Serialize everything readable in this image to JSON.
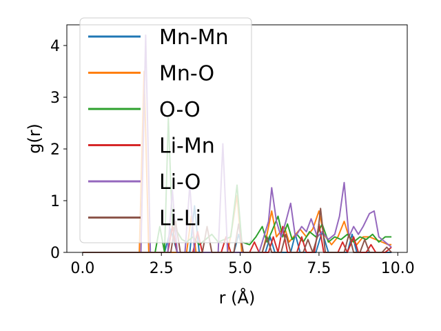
{
  "chart_data": {
    "type": "line",
    "title": "",
    "xlabel": "r (Å)",
    "ylabel": "g(r)",
    "xlim": [
      -0.5,
      10.3
    ],
    "ylim": [
      0,
      4.4
    ],
    "xticks": [
      0.0,
      2.5,
      5.0,
      7.5,
      10.0
    ],
    "xtick_labels": [
      "0.0",
      "2.5",
      "5.0",
      "7.5",
      "10.0"
    ],
    "yticks": [
      0,
      1,
      2,
      3,
      4
    ],
    "ytick_labels": [
      "0",
      "1",
      "2",
      "3",
      "4"
    ],
    "grid": false,
    "legend_position": "top-left",
    "series": [
      {
        "name": "Mn-Mn",
        "color": "#1f77b4",
        "points": [
          [
            0,
            0
          ],
          [
            2.6,
            0
          ],
          [
            2.8,
            0.45
          ],
          [
            3.0,
            0
          ],
          [
            3.4,
            0
          ],
          [
            3.55,
            0.9
          ],
          [
            3.7,
            0
          ],
          [
            4.8,
            0
          ],
          [
            4.95,
            0.35
          ],
          [
            5.1,
            0
          ],
          [
            5.8,
            0
          ],
          [
            5.95,
            0.3
          ],
          [
            6.1,
            0
          ],
          [
            6.6,
            0
          ],
          [
            6.75,
            0.35
          ],
          [
            6.9,
            0
          ],
          [
            7.4,
            0
          ],
          [
            7.6,
            0.4
          ],
          [
            7.8,
            0
          ],
          [
            8.4,
            0
          ],
          [
            8.55,
            0.35
          ],
          [
            8.7,
            0
          ],
          [
            9.8,
            0
          ]
        ]
      },
      {
        "name": "Mn-O",
        "color": "#ff7f0e",
        "points": [
          [
            0,
            0
          ],
          [
            1.8,
            0
          ],
          [
            1.95,
            3.5
          ],
          [
            2.1,
            0
          ],
          [
            3.3,
            0
          ],
          [
            3.45,
            0.7
          ],
          [
            3.6,
            0
          ],
          [
            4.6,
            0
          ],
          [
            4.75,
            0.5
          ],
          [
            4.9,
            1.1
          ],
          [
            5.05,
            0
          ],
          [
            5.7,
            0
          ],
          [
            5.85,
            0.35
          ],
          [
            6.0,
            0.8
          ],
          [
            6.15,
            0.3
          ],
          [
            6.4,
            0.5
          ],
          [
            6.55,
            0.2
          ],
          [
            6.9,
            0.45
          ],
          [
            7.1,
            0.3
          ],
          [
            7.3,
            0.45
          ],
          [
            7.5,
            0.8
          ],
          [
            7.65,
            0.35
          ],
          [
            7.9,
            0.15
          ],
          [
            8.1,
            0.3
          ],
          [
            8.3,
            0.6
          ],
          [
            8.45,
            0.3
          ],
          [
            8.7,
            0.15
          ],
          [
            8.9,
            0.3
          ],
          [
            9.1,
            0.3
          ],
          [
            9.3,
            0.25
          ],
          [
            9.5,
            0.2
          ],
          [
            9.7,
            0.15
          ],
          [
            9.8,
            0.15
          ]
        ]
      },
      {
        "name": "O-O",
        "color": "#2ca02c",
        "points": [
          [
            0,
            0
          ],
          [
            2.3,
            0
          ],
          [
            2.45,
            0.5
          ],
          [
            2.6,
            0
          ],
          [
            2.72,
            2.6
          ],
          [
            2.85,
            0.5
          ],
          [
            3.0,
            0.4
          ],
          [
            3.15,
            0.25
          ],
          [
            3.3,
            0.2
          ],
          [
            3.5,
            0.3
          ],
          [
            3.7,
            0.15
          ],
          [
            3.9,
            0.25
          ],
          [
            4.1,
            0.35
          ],
          [
            4.3,
            0.2
          ],
          [
            4.5,
            0.25
          ],
          [
            4.7,
            0.3
          ],
          [
            4.9,
            1.3
          ],
          [
            5.05,
            0.2
          ],
          [
            5.3,
            0.15
          ],
          [
            5.5,
            0.3
          ],
          [
            5.7,
            0.5
          ],
          [
            5.85,
            0.2
          ],
          [
            6.0,
            0.4
          ],
          [
            6.2,
            0.7
          ],
          [
            6.35,
            0.3
          ],
          [
            6.5,
            0.55
          ],
          [
            6.65,
            0.25
          ],
          [
            6.8,
            0.35
          ],
          [
            7.0,
            0.2
          ],
          [
            7.2,
            0.4
          ],
          [
            7.4,
            0.3
          ],
          [
            7.6,
            0.55
          ],
          [
            7.8,
            0.2
          ],
          [
            8.0,
            0.3
          ],
          [
            8.2,
            0.25
          ],
          [
            8.4,
            0.35
          ],
          [
            8.6,
            0.2
          ],
          [
            8.8,
            0.3
          ],
          [
            9.0,
            0.25
          ],
          [
            9.2,
            0.35
          ],
          [
            9.4,
            0.2
          ],
          [
            9.6,
            0.3
          ],
          [
            9.8,
            0.3
          ]
        ]
      },
      {
        "name": "Li-Mn",
        "color": "#d62728",
        "points": [
          [
            0,
            0
          ],
          [
            2.7,
            0
          ],
          [
            2.85,
            0.5
          ],
          [
            3.0,
            0
          ],
          [
            3.5,
            0
          ],
          [
            3.65,
            0.4
          ],
          [
            3.8,
            0
          ],
          [
            4.4,
            0
          ],
          [
            4.55,
            0.3
          ],
          [
            4.7,
            0
          ],
          [
            5.3,
            0
          ],
          [
            5.45,
            0.2
          ],
          [
            5.6,
            0
          ],
          [
            5.9,
            0
          ],
          [
            6.05,
            0.3
          ],
          [
            6.2,
            0
          ],
          [
            6.35,
            0.5
          ],
          [
            6.5,
            0
          ],
          [
            6.8,
            0
          ],
          [
            6.95,
            0.3
          ],
          [
            7.1,
            0
          ],
          [
            7.35,
            0
          ],
          [
            7.5,
            0.55
          ],
          [
            7.65,
            0
          ],
          [
            8.1,
            0
          ],
          [
            8.25,
            0.2
          ],
          [
            8.4,
            0
          ],
          [
            8.6,
            0.3
          ],
          [
            8.75,
            0
          ],
          [
            9.0,
            0
          ],
          [
            9.15,
            0.15
          ],
          [
            9.3,
            0
          ],
          [
            9.6,
            0
          ],
          [
            9.8,
            0.1
          ]
        ]
      },
      {
        "name": "Li-O",
        "color": "#9467bd",
        "points": [
          [
            0,
            0
          ],
          [
            1.85,
            0
          ],
          [
            2.0,
            4.2
          ],
          [
            2.15,
            0
          ],
          [
            2.7,
            0
          ],
          [
            2.85,
            1.2
          ],
          [
            3.0,
            0
          ],
          [
            3.25,
            0
          ],
          [
            3.4,
            1.3
          ],
          [
            3.55,
            0
          ],
          [
            4.3,
            0
          ],
          [
            4.45,
            2.1
          ],
          [
            4.6,
            0
          ],
          [
            5.6,
            0
          ],
          [
            5.75,
            0.3
          ],
          [
            5.9,
            0.6
          ],
          [
            6.0,
            1.25
          ],
          [
            6.15,
            0.6
          ],
          [
            6.3,
            0.3
          ],
          [
            6.45,
            0.6
          ],
          [
            6.6,
            0.95
          ],
          [
            6.75,
            0.3
          ],
          [
            6.95,
            0.5
          ],
          [
            7.1,
            0.4
          ],
          [
            7.25,
            0.65
          ],
          [
            7.45,
            0.3
          ],
          [
            7.6,
            0.4
          ],
          [
            7.8,
            0.25
          ],
          [
            8.0,
            0.35
          ],
          [
            8.15,
            0.7
          ],
          [
            8.3,
            1.35
          ],
          [
            8.45,
            0.3
          ],
          [
            8.6,
            0.5
          ],
          [
            8.75,
            0.35
          ],
          [
            8.9,
            0.5
          ],
          [
            9.1,
            0.75
          ],
          [
            9.25,
            0.8
          ],
          [
            9.4,
            0.3
          ],
          [
            9.6,
            0.2
          ],
          [
            9.8,
            0.1
          ]
        ]
      },
      {
        "name": "Li-Li",
        "color": "#8c564b",
        "points": [
          [
            0,
            0
          ],
          [
            2.8,
            0
          ],
          [
            2.95,
            0.6
          ],
          [
            3.1,
            0
          ],
          [
            3.8,
            0
          ],
          [
            3.95,
            0.5
          ],
          [
            4.1,
            0
          ],
          [
            4.8,
            0
          ],
          [
            4.95,
            0.55
          ],
          [
            5.1,
            0
          ],
          [
            5.7,
            0
          ],
          [
            5.85,
            0.3
          ],
          [
            6.0,
            0
          ],
          [
            6.3,
            0
          ],
          [
            6.45,
            0.35
          ],
          [
            6.6,
            0
          ],
          [
            7.0,
            0
          ],
          [
            7.15,
            0.25
          ],
          [
            7.3,
            0
          ],
          [
            7.45,
            0.3
          ],
          [
            7.55,
            0.85
          ],
          [
            7.7,
            0
          ],
          [
            8.3,
            0
          ],
          [
            8.45,
            0.35
          ],
          [
            8.6,
            0
          ],
          [
            8.8,
            0
          ],
          [
            8.95,
            0.25
          ],
          [
            9.1,
            0
          ],
          [
            9.5,
            0
          ],
          [
            9.65,
            0.1
          ],
          [
            9.8,
            0
          ]
        ]
      }
    ]
  }
}
